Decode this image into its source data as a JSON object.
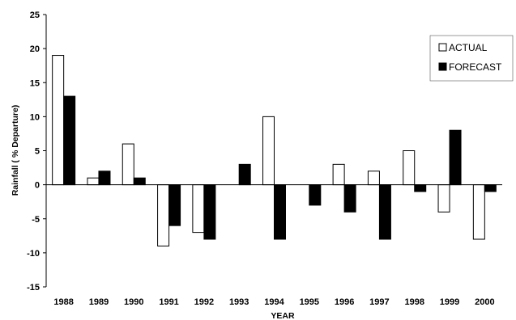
{
  "chart_data": {
    "type": "bar",
    "title": "",
    "xlabel": "YEAR",
    "ylabel": "Rainfall ( % Departure)",
    "ylim": [
      -15,
      25
    ],
    "yticks": [
      -15,
      -10,
      -5,
      0,
      5,
      10,
      15,
      20,
      25
    ],
    "grid": false,
    "legend_position": "top-right",
    "categories": [
      "1988",
      "1989",
      "1990",
      "1991",
      "1992",
      "1993",
      "1994",
      "1995",
      "1996",
      "1997",
      "1998",
      "1999",
      "2000"
    ],
    "series": [
      {
        "name": "ACTUAL",
        "fill": "#ffffff",
        "stroke": "#000000",
        "values": [
          19,
          1,
          6,
          -9,
          -7,
          0,
          10,
          0,
          3,
          2,
          5,
          -4,
          -8
        ]
      },
      {
        "name": "FORECAST",
        "fill": "#000000",
        "stroke": "#000000",
        "values": [
          13,
          2,
          1,
          -6,
          -8,
          3,
          -8,
          -3,
          -4,
          -8,
          -1,
          8,
          -1
        ]
      }
    ]
  }
}
